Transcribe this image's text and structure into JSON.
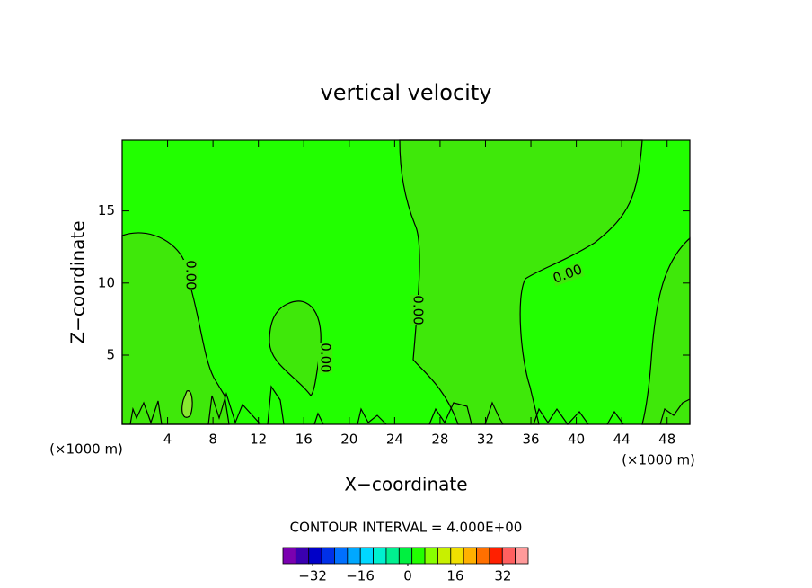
{
  "chart_data": {
    "type": "contour",
    "title": "vertical velocity",
    "x_label": "X−coordinate",
    "y_label": "Z−coordinate",
    "x_unit": "(×1000 m)",
    "x_unit_right": "(×1000 m)",
    "xlim": [
      0,
      50
    ],
    "ylim": [
      0.2,
      19.9
    ],
    "xticks": [
      4,
      8,
      12,
      16,
      20,
      24,
      28,
      32,
      36,
      40,
      44,
      48
    ],
    "yticks": [
      5,
      10,
      15
    ],
    "contour_labels": [
      "0.00",
      "0.00",
      "0.00",
      "0.00"
    ],
    "contour_interval_text": "CONTOUR INTERVAL = 4.000E+00",
    "colorbar": {
      "colors": [
        "#7a00b0",
        "#3a00b0",
        "#0000c8",
        "#0030e8",
        "#0070ff",
        "#00a8ff",
        "#00d8ff",
        "#00f0d0",
        "#00f090",
        "#00f040",
        "#22ff00",
        "#88ff00",
        "#c8f000",
        "#f0e000",
        "#ffb000",
        "#ff7000",
        "#ff2000",
        "#ff6060",
        "#ff9a9a"
      ],
      "clim": [
        -42,
        40.5
      ],
      "ticks": [
        {
          "value": -32,
          "label": "−32"
        },
        {
          "value": -16,
          "label": "−16"
        },
        0,
        16,
        32
      ]
    }
  }
}
